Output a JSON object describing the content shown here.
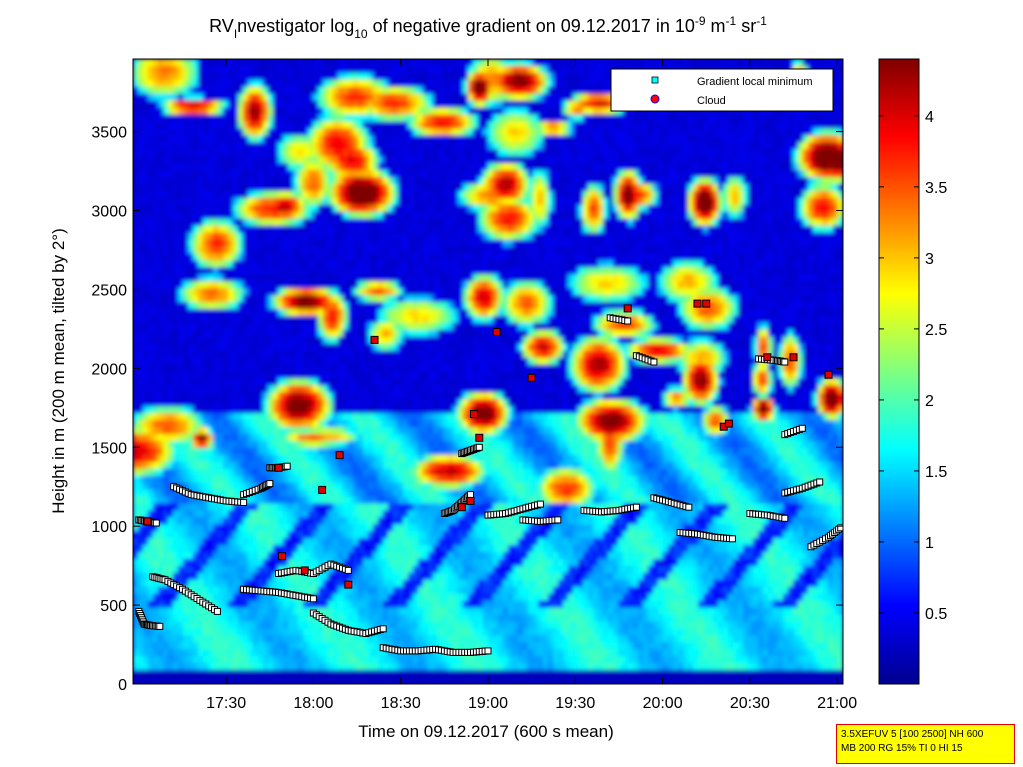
{
  "chart_data": {
    "type": "heatmap",
    "title_parts": {
      "prefix": "RV",
      "sub1": "I",
      "mid": "nvestigator log",
      "sub2": "10",
      "tail": " of negative gradient on 09.12.2017 in 10",
      "sup1": "-9",
      "unit1": " m",
      "sup2": "-1",
      "unit2": " sr",
      "sup3": "-1"
    },
    "xlabel": "Time on 09.12.2017 (600 s mean)",
    "ylabel": "Height in m (200 m mean, tilted by 2°)",
    "x_ticks": [
      "17:30",
      "18:00",
      "18:30",
      "19:00",
      "19:30",
      "20:00",
      "20:30",
      "21:00"
    ],
    "x_tick_hours": [
      17.5,
      18.0,
      18.5,
      19.0,
      19.5,
      20.0,
      20.5,
      21.0
    ],
    "xlim_hours": [
      16.9667,
      21.0333
    ],
    "y_ticks": [
      0,
      500,
      1000,
      1500,
      2000,
      2500,
      3000,
      3500
    ],
    "ylim": [
      0,
      3960
    ],
    "colorbar_ticks": [
      0.5,
      1,
      1.5,
      2,
      2.5,
      3,
      3.5,
      4
    ],
    "colorbar_range": [
      0,
      4.4
    ],
    "colormap": "jet",
    "grid": false,
    "legend_position": "top-right",
    "legend": [
      {
        "name": "Gradient local minimum",
        "marker": "square",
        "color": "#00ffff"
      },
      {
        "name": "Cloud",
        "marker": "circle",
        "color": "#ff0000"
      }
    ],
    "gradient_minima_tracks": [
      {
        "t": [
          17.0,
          17.05,
          17.1
        ],
        "h": [
          1040,
          1030,
          1020
        ]
      },
      {
        "t": [
          17.0,
          17.03,
          17.07,
          17.12
        ],
        "h": [
          460,
          380,
          370,
          365
        ]
      },
      {
        "t": [
          17.08,
          17.15,
          17.25,
          17.35,
          17.45
        ],
        "h": [
          680,
          660,
          600,
          530,
          460
        ]
      },
      {
        "t": [
          17.2,
          17.3,
          17.4,
          17.5,
          17.6
        ],
        "h": [
          1250,
          1200,
          1180,
          1160,
          1150
        ]
      },
      {
        "t": [
          17.6,
          17.7,
          17.75
        ],
        "h": [
          1200,
          1240,
          1270
        ]
      },
      {
        "t": [
          17.75,
          17.8,
          17.85
        ],
        "h": [
          1370,
          1370,
          1380
        ]
      },
      {
        "t": [
          17.6,
          17.7,
          17.8,
          17.9,
          18.0
        ],
        "h": [
          600,
          590,
          580,
          560,
          540
        ]
      },
      {
        "t": [
          18.0,
          18.1,
          18.2,
          18.3,
          18.4
        ],
        "h": [
          450,
          380,
          340,
          320,
          350
        ]
      },
      {
        "t": [
          17.8,
          17.9,
          18.0,
          18.1,
          18.2
        ],
        "h": [
          700,
          720,
          700,
          760,
          720
        ]
      },
      {
        "t": [
          18.4,
          18.5,
          18.6,
          18.7,
          18.8,
          18.9,
          19.0
        ],
        "h": [
          230,
          210,
          210,
          220,
          200,
          200,
          210
        ]
      },
      {
        "t": [
          18.75,
          18.8,
          18.85,
          18.9
        ],
        "h": [
          1080,
          1100,
          1150,
          1200
        ]
      },
      {
        "t": [
          18.85,
          18.9,
          18.95
        ],
        "h": [
          1460,
          1480,
          1500
        ]
      },
      {
        "t": [
          19.0,
          19.1,
          19.2,
          19.3
        ],
        "h": [
          1070,
          1080,
          1110,
          1140
        ]
      },
      {
        "t": [
          19.2,
          19.3,
          19.4
        ],
        "h": [
          1040,
          1030,
          1040
        ]
      },
      {
        "t": [
          19.55,
          19.65,
          19.75,
          19.85
        ],
        "h": [
          1100,
          1090,
          1100,
          1120
        ]
      },
      {
        "t": [
          19.7,
          19.8
        ],
        "h": [
          2320,
          2300
        ]
      },
      {
        "t": [
          19.85,
          19.95
        ],
        "h": [
          2080,
          2040
        ]
      },
      {
        "t": [
          19.95,
          20.05,
          20.15
        ],
        "h": [
          1180,
          1150,
          1120
        ]
      },
      {
        "t": [
          20.1,
          20.2,
          20.3,
          20.4
        ],
        "h": [
          960,
          950,
          930,
          920
        ]
      },
      {
        "t": [
          20.5,
          20.6,
          20.7
        ],
        "h": [
          1080,
          1070,
          1050
        ]
      },
      {
        "t": [
          20.55,
          20.65,
          20.7
        ],
        "h": [
          2060,
          2050,
          2040
        ]
      },
      {
        "t": [
          20.7,
          20.8,
          20.9
        ],
        "h": [
          1210,
          1240,
          1280
        ]
      },
      {
        "t": [
          20.7,
          20.8
        ],
        "h": [
          1580,
          1620
        ]
      },
      {
        "t": [
          20.85,
          20.95,
          21.02
        ],
        "h": [
          870,
          930,
          990
        ]
      }
    ],
    "cloud_points": [
      {
        "t": 17.05,
        "h": 1030
      },
      {
        "t": 17.8,
        "h": 1370
      },
      {
        "t": 17.82,
        "h": 810
      },
      {
        "t": 17.95,
        "h": 720
      },
      {
        "t": 18.05,
        "h": 1230
      },
      {
        "t": 18.2,
        "h": 630
      },
      {
        "t": 18.15,
        "h": 1450
      },
      {
        "t": 18.35,
        "h": 2180
      },
      {
        "t": 18.85,
        "h": 1120
      },
      {
        "t": 18.9,
        "h": 1160
      },
      {
        "t": 18.92,
        "h": 1710
      },
      {
        "t": 18.95,
        "h": 1560
      },
      {
        "t": 19.05,
        "h": 2230
      },
      {
        "t": 19.25,
        "h": 1940
      },
      {
        "t": 19.8,
        "h": 2380
      },
      {
        "t": 20.2,
        "h": 2410
      },
      {
        "t": 20.25,
        "h": 2410
      },
      {
        "t": 20.35,
        "h": 1630
      },
      {
        "t": 20.38,
        "h": 1650
      },
      {
        "t": 20.6,
        "h": 2070
      },
      {
        "t": 20.75,
        "h": 2070
      },
      {
        "t": 20.95,
        "h": 1960
      }
    ],
    "settings_line1": "3.5XEFUV 5 [100 2500] NH 600",
    "settings_line2": "MB 200 RG 15% TI 0 HI 15"
  }
}
